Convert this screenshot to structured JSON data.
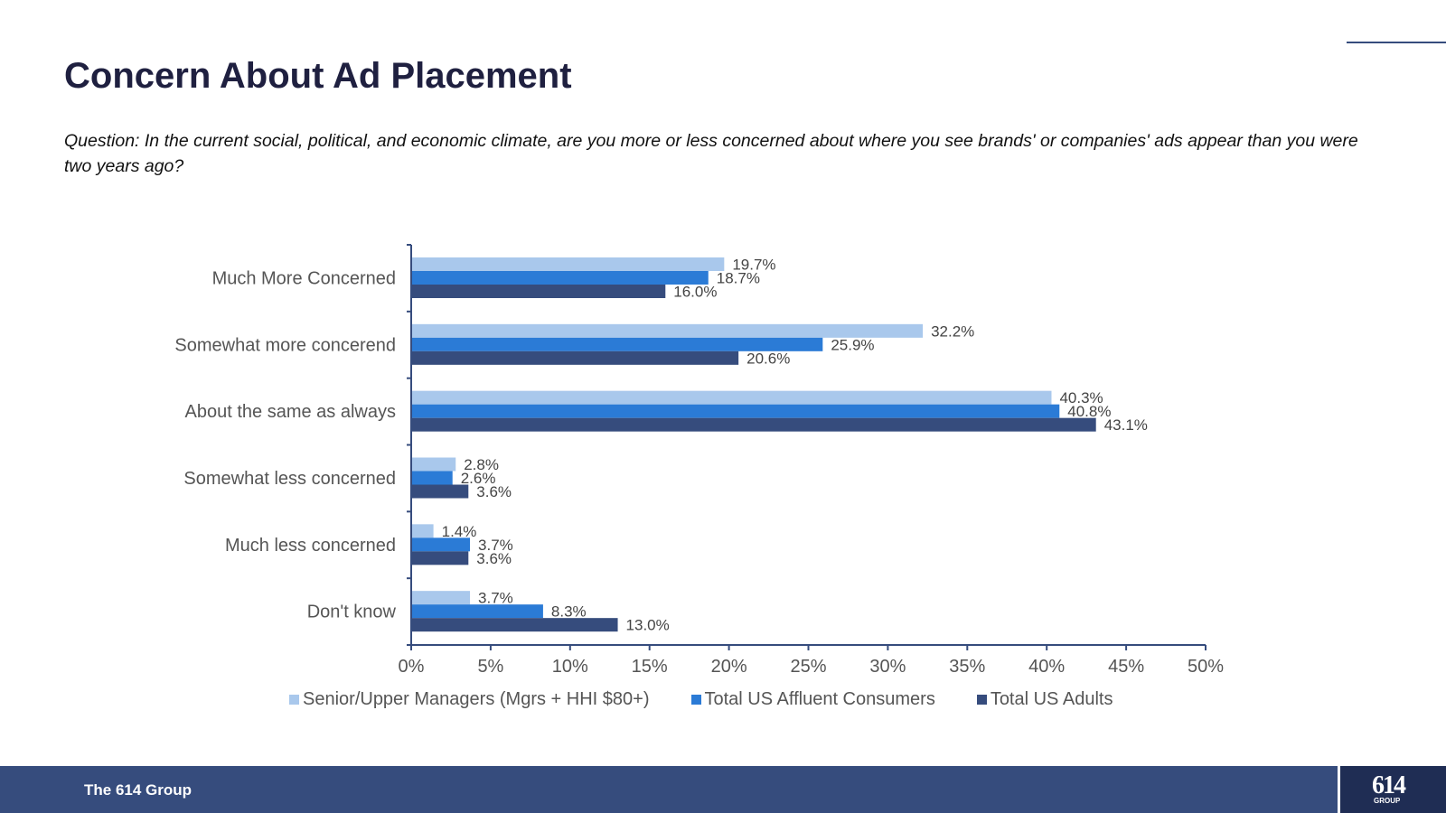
{
  "page": {
    "title": "Concern About Ad Placement",
    "question": "Question: In the current social, political, and economic climate, are you more or less concerned about where you see brands' or companies' ads appear than you were two years ago?"
  },
  "footer": {
    "brand": "The 614 Group",
    "logo_number": "614",
    "logo_word": "GROUP"
  },
  "colors": {
    "accent": "#364c7d",
    "title": "#1f2040"
  },
  "chart_data": {
    "type": "bar",
    "orientation": "horizontal",
    "title": "",
    "xlabel": "",
    "ylabel": "",
    "xlim": [
      0,
      50
    ],
    "x_ticks": [
      0,
      5,
      10,
      15,
      20,
      25,
      30,
      35,
      40,
      45,
      50
    ],
    "x_tick_labels": [
      "0%",
      "5%",
      "10%",
      "15%",
      "20%",
      "25%",
      "30%",
      "35%",
      "40%",
      "45%",
      "50%"
    ],
    "grid": false,
    "legend_position": "bottom",
    "categories": [
      "Much More Concerned",
      "Somewhat more concerend",
      "About the same as always",
      "Somewhat less concerned",
      "Much less concerned",
      "Don't know"
    ],
    "series": [
      {
        "name": "Senior/Upper Managers (Mgrs + HHI $80+)",
        "color": "#a9c8ec",
        "values": [
          19.7,
          32.2,
          40.3,
          2.8,
          1.4,
          3.7
        ],
        "labels": [
          "19.7%",
          "32.2%",
          "40.3%",
          "2.8%",
          "1.4%",
          "3.7%"
        ]
      },
      {
        "name": "Total US Affluent Consumers",
        "color": "#2b7bd6",
        "values": [
          18.7,
          25.9,
          40.8,
          2.6,
          3.7,
          8.3
        ],
        "labels": [
          "18.7%",
          "25.9%",
          "40.8%",
          "2.6%",
          "3.7%",
          "8.3%"
        ]
      },
      {
        "name": "Total US Adults",
        "color": "#364c7d",
        "values": [
          16.0,
          20.6,
          43.1,
          3.6,
          3.6,
          13.0
        ],
        "labels": [
          "16.0%",
          "20.6%",
          "43.1%",
          "3.6%",
          "3.6%",
          "13.0%"
        ]
      }
    ]
  }
}
